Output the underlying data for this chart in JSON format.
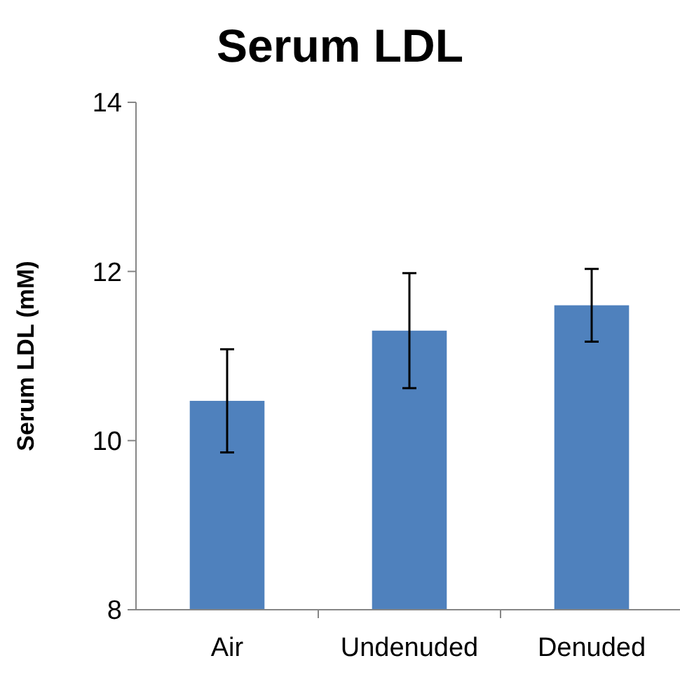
{
  "chart_data": {
    "type": "bar",
    "title": "Serum LDL",
    "ylabel": "Serum LDL (mM)",
    "categories": [
      "Air",
      "Undenuded",
      "Denuded"
    ],
    "values": [
      10.47,
      11.3,
      11.6
    ],
    "color": "#4f81bd",
    "errors": [
      0.61,
      0.68,
      0.43
    ],
    "ylim": [
      8,
      14
    ],
    "yticks": [
      8,
      10,
      12,
      14
    ],
    "grid": false
  }
}
